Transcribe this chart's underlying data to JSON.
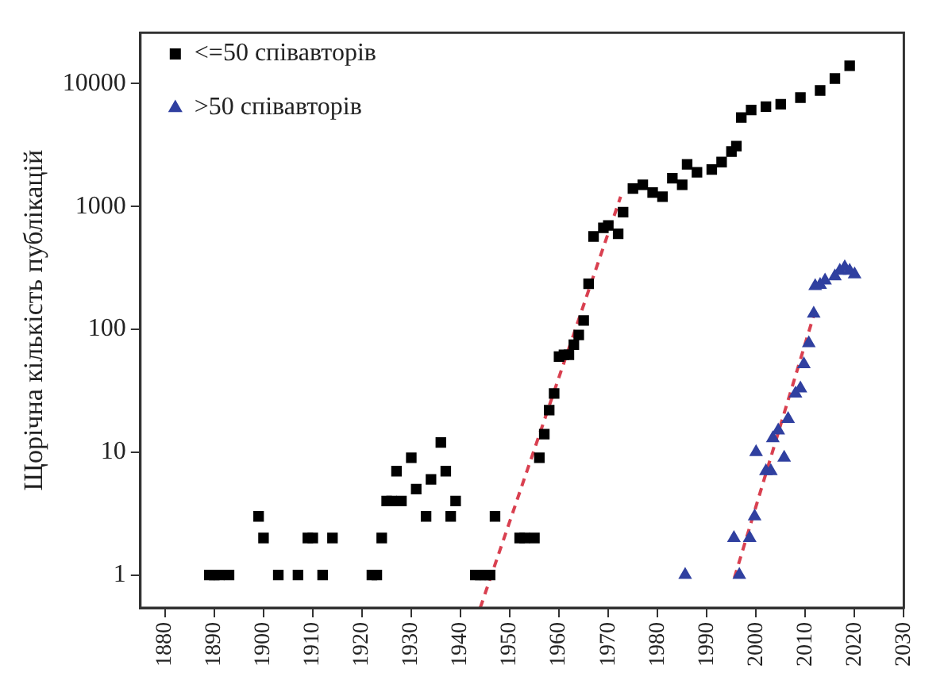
{
  "chart_data": {
    "type": "scatter",
    "ylabel": "Щорічна кількість публікацій",
    "log": "y",
    "grid": false,
    "legend": "top left",
    "xlim": [
      1875,
      2030
    ],
    "xticks": [
      1880,
      1890,
      1900,
      1910,
      1920,
      1930,
      1940,
      1950,
      1960,
      1970,
      1980,
      1990,
      2000,
      2010,
      2020,
      2030
    ],
    "ylim": [
      0.54,
      26000
    ],
    "yticks": [
      1,
      10,
      100,
      1000,
      10000
    ],
    "series": [
      {
        "name": "<=50 співавторів",
        "color": "#000000",
        "marker": "square",
        "x": [
          1889,
          1890,
          1891,
          1893,
          1899,
          1900,
          1903,
          1907,
          1909,
          1910,
          1912,
          1914,
          1922,
          1923,
          1924,
          1925,
          1926,
          1927,
          1928,
          1930,
          1931,
          1933,
          1934,
          1936,
          1937,
          1938,
          1939,
          1943,
          1944,
          1945,
          1946,
          1947,
          1952,
          1953,
          1955,
          1956,
          1957,
          1958,
          1959,
          1960,
          1961,
          1962,
          1963,
          1964,
          1965,
          1966,
          1967,
          1969,
          1970,
          1972,
          1973,
          1975,
          1977,
          1979,
          1981,
          1983,
          1985,
          1986,
          1988,
          1991,
          1993,
          1995,
          1996,
          1997,
          1999,
          2002,
          2005,
          2009,
          2013,
          2016,
          2019
        ],
        "values": [
          1,
          1,
          1,
          1,
          3,
          2,
          1,
          1,
          2,
          2,
          1,
          2,
          1,
          1,
          2,
          4,
          4,
          7,
          4,
          9,
          5,
          3,
          6,
          12,
          7,
          3,
          4,
          1,
          1,
          1,
          1,
          3,
          2,
          2,
          2,
          9,
          14,
          22,
          30,
          60,
          62,
          62,
          75,
          90,
          118,
          235,
          570,
          670,
          700,
          600,
          900,
          1400,
          1500,
          1300,
          1200,
          1700,
          1500,
          2200,
          1900,
          2000,
          2300,
          2800,
          3100,
          5300,
          6100,
          6500,
          6800,
          7700,
          8800,
          11000,
          14000
        ]
      },
      {
        "name": ">50 співавторів",
        "color": "#3040a0",
        "marker": "triangle",
        "x": [
          1985.6,
          1995.5,
          1996.6,
          1998.7,
          1999.7,
          2000,
          2002,
          2003,
          2003.4,
          2004.5,
          2005.7,
          2006.5,
          2008,
          2009,
          2009.7,
          2010.7,
          2011.7,
          2012,
          2013,
          2014,
          2016,
          2017,
          2018,
          2019,
          2020
        ],
        "values": [
          1,
          2,
          1,
          2,
          3,
          10,
          7,
          7,
          13,
          15,
          9,
          18.6,
          30,
          33,
          52,
          77,
          134,
          225,
          230,
          250,
          270,
          300,
          320,
          300,
          280
        ]
      },
      {
        "type": "line",
        "color": "#d94050",
        "line_style": "dashed",
        "marker": "none",
        "x": [
          1944,
          1972.5
        ],
        "values": [
          0.54,
          1200
        ]
      },
      {
        "type": "line",
        "color": "#d94050",
        "line_style": "dashed",
        "marker": "none",
        "x": [
          1995.6,
          2012
        ],
        "values": [
          0.95,
          142
        ]
      }
    ]
  }
}
